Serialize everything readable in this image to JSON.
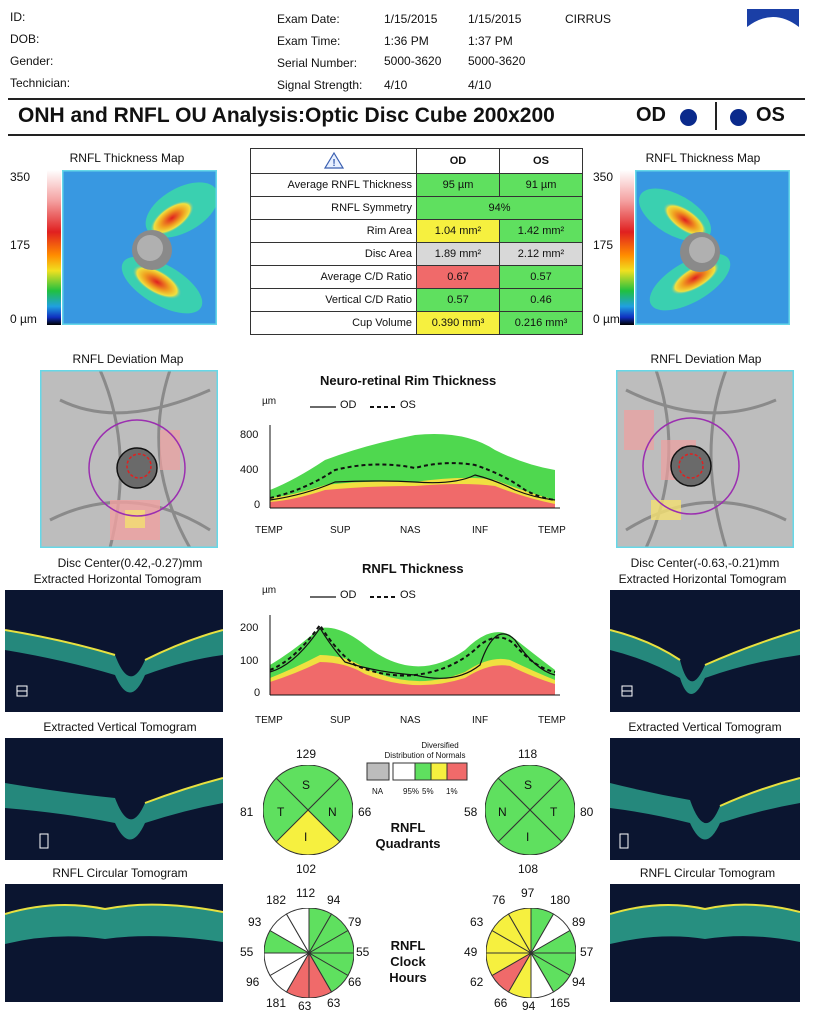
{
  "header": {
    "id_label": "ID:",
    "dob_label": "DOB:",
    "gender_label": "Gender:",
    "technician_label": "Technician:",
    "exam_date_label": "Exam Date:",
    "exam_time_label": "Exam Time:",
    "serial_label": "Serial Number:",
    "signal_label": "Signal Strength:",
    "od": {
      "date": "1/15/2015",
      "time": "1:36 PM",
      "serial": "5000-3620",
      "signal": "4/10"
    },
    "os": {
      "date": "1/15/2015",
      "time": "1:37 PM",
      "serial": "5000-3620",
      "signal": "4/10"
    },
    "device": "CIRRUS"
  },
  "title": "ONH and RNFL OU Analysis:Optic Disc Cube 200x200",
  "od_label": "OD",
  "os_label": "OS",
  "thickness_map": {
    "caption": "RNFL Thickness Map",
    "scale_max": "350",
    "scale_mid": "175",
    "scale_min": "0 µm"
  },
  "deviation_map": {
    "caption": "RNFL Deviation Map"
  },
  "disc_center": {
    "od": "Disc Center(0.42,-0.27)mm",
    "os": "Disc Center(-0.63,-0.21)mm"
  },
  "tomograms": {
    "horizontal": "Extracted Horizontal Tomogram",
    "vertical": "Extracted Vertical Tomogram",
    "circular": "RNFL Circular Tomogram"
  },
  "metrics": {
    "col_od": "OD",
    "col_os": "OS",
    "rows": [
      {
        "label": "Average RNFL Thickness",
        "od": "95 µm",
        "os": "91 µm",
        "od_color": "#5fe05f",
        "os_color": "#5fe05f"
      },
      {
        "label": "RNFL Symmetry",
        "combined": "94%",
        "color": "#5fe05f"
      },
      {
        "label": "Rim Area",
        "od": "1.04 mm²",
        "os": "1.42 mm²",
        "od_color": "#f6f03f",
        "os_color": "#5fe05f"
      },
      {
        "label": "Disc Area",
        "od": "1.89 mm²",
        "os": "2.12 mm²",
        "od_color": "#d8d8d8",
        "os_color": "#d8d8d8"
      },
      {
        "label": "Average C/D Ratio",
        "od": "0.67",
        "os": "0.57",
        "od_color": "#f06a6a",
        "os_color": "#5fe05f"
      },
      {
        "label": "Vertical C/D Ratio",
        "od": "0.57",
        "os": "0.46",
        "od_color": "#5fe05f",
        "os_color": "#5fe05f"
      },
      {
        "label": "Cup Volume",
        "od": "0.390 mm³",
        "os": "0.216 mm³",
        "od_color": "#f6f03f",
        "os_color": "#5fe05f"
      }
    ]
  },
  "rim_chart": {
    "title": "Neuro-retinal Rim Thickness",
    "unit": "µm",
    "legend_od": "OD",
    "legend_os": "OS",
    "yticks": [
      "800",
      "400",
      "0"
    ],
    "xlabels": [
      "TEMP",
      "SUP",
      "NAS",
      "INF",
      "TEMP"
    ]
  },
  "rnfl_chart": {
    "title": "RNFL Thickness",
    "unit": "µm",
    "legend_od": "OD",
    "legend_os": "OS",
    "yticks": [
      "200",
      "100",
      "0"
    ],
    "xlabels": [
      "TEMP",
      "SUP",
      "NAS",
      "INF",
      "TEMP"
    ]
  },
  "normals_legend": {
    "title_line1": "Diversified",
    "title_line2": "Distribution of Normals",
    "labels": [
      "NA",
      "95%",
      "5%",
      "1%"
    ]
  },
  "quadrants": {
    "label_line1": "RNFL",
    "label_line2": "Quadrants",
    "od": {
      "S": "129",
      "N": "66",
      "I": "102",
      "T": "81",
      "letters": [
        "S",
        "N",
        "I",
        "T"
      ]
    },
    "os": {
      "S": "118",
      "T": "80",
      "I": "108",
      "N": "58",
      "letters": [
        "S",
        "T",
        "I",
        "N"
      ]
    }
  },
  "clock_hours": {
    "label_line1": "RNFL",
    "label_line2": "Clock",
    "label_line3": "Hours",
    "od": [
      "112",
      "94",
      "79",
      "55",
      "66",
      "63",
      "63",
      "181",
      "96",
      "55",
      "93",
      "182"
    ],
    "os": [
      "97",
      "180",
      "89",
      "57",
      "94",
      "165",
      "94",
      "66",
      "62",
      "49",
      "63",
      "76"
    ]
  }
}
